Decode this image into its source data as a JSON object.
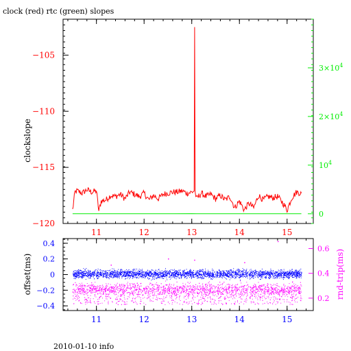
{
  "title": "clock (red) rtc (green) slopes",
  "footer": "2010-01-10 info",
  "colors": {
    "red": "#ff0000",
    "green": "#00ee00",
    "blue": "#0000ff",
    "magenta": "#ff00ff",
    "axis": "#000000"
  },
  "chart_data": [
    {
      "type": "line",
      "title": "clock (red) rtc (green) slopes",
      "xlabel": "",
      "ylabel": "clockslope",
      "xlim": [
        10.3,
        15.55
      ],
      "ylim": [
        -120,
        -101.8
      ],
      "y2lim": [
        -2000,
        40000
      ],
      "x_ticks": [
        11,
        12,
        13,
        14,
        15
      ],
      "y_ticks": [
        -105,
        -110,
        -115,
        -120
      ],
      "y2_tick_values": [
        0,
        10000,
        20000,
        30000
      ],
      "y2_tick_labels": [
        {
          "base": "0",
          "exp": ""
        },
        {
          "base": "10",
          "exp": "4"
        },
        {
          "base": "2×10",
          "exp": "4"
        },
        {
          "base": "3×10",
          "exp": "4"
        }
      ],
      "grid": false,
      "series": [
        {
          "name": "clock",
          "color": "red",
          "axis": "left",
          "x": [
            10.5,
            10.55,
            10.6,
            10.7,
            10.8,
            10.9,
            11.0,
            11.05,
            11.1,
            11.2,
            11.3,
            11.4,
            11.5,
            11.6,
            11.7,
            11.8,
            11.9,
            12.0,
            12.1,
            12.2,
            12.3,
            12.4,
            12.5,
            12.6,
            12.7,
            12.8,
            12.9,
            13.0,
            13.05,
            13.06,
            13.07,
            13.1,
            13.2,
            13.3,
            13.4,
            13.5,
            13.6,
            13.7,
            13.8,
            13.9,
            14.0,
            14.1,
            14.2,
            14.3,
            14.4,
            14.5,
            14.6,
            14.7,
            14.8,
            14.9,
            15.0,
            15.1,
            15.2,
            15.3
          ],
          "y": [
            -118.8,
            -117.2,
            -117.1,
            -117.3,
            -117.0,
            -117.2,
            -117.1,
            -118.9,
            -118.0,
            -117.9,
            -117.5,
            -117.6,
            -117.4,
            -117.8,
            -117.2,
            -117.4,
            -117.6,
            -117.3,
            -117.9,
            -117.5,
            -117.8,
            -117.4,
            -117.3,
            -117.2,
            -117.2,
            -117.1,
            -117.3,
            -117.2,
            -117.1,
            -102.5,
            -117.2,
            -117.8,
            -117.3,
            -117.6,
            -117.4,
            -117.8,
            -117.5,
            -117.9,
            -117.6,
            -118.6,
            -118.0,
            -118.8,
            -118.2,
            -118.6,
            -117.5,
            -117.9,
            -117.6,
            -117.7,
            -117.6,
            -118.1,
            -118.8,
            -117.7,
            -117.2,
            -117.3
          ]
        },
        {
          "name": "rtc",
          "color": "green",
          "axis": "right",
          "x": [
            10.5,
            11.0,
            11.5,
            12.0,
            12.5,
            13.0,
            13.1,
            13.5,
            14.0,
            14.5,
            15.0,
            15.3
          ],
          "y": [
            0,
            20,
            0,
            10,
            0,
            30,
            0,
            10,
            0,
            20,
            0,
            10
          ]
        }
      ]
    },
    {
      "type": "scatter",
      "xlabel": "",
      "ylabel": "offset(ms)",
      "y2label": "rnd-trip(ms)",
      "xlim": [
        10.3,
        15.55
      ],
      "ylim": [
        -0.46,
        0.46
      ],
      "y2lim": [
        0.1,
        0.68
      ],
      "x_ticks": [
        11,
        12,
        13,
        14,
        15
      ],
      "y_ticks": [
        0.4,
        0.2,
        0,
        -0.2,
        -0.4
      ],
      "y_tick_labels": [
        "0.4",
        "0.2",
        "0",
        "−0.2",
        "−0.4"
      ],
      "y2_ticks": [
        0.6,
        0.4,
        0.2
      ],
      "grid": false,
      "series": [
        {
          "name": "offset",
          "color": "blue",
          "axis": "left",
          "x_range": [
            10.5,
            15.3
          ],
          "band_center": 0.01,
          "band_spread": 0.05
        },
        {
          "name": "rnd-trip",
          "color": "magenta",
          "axis": "right",
          "x_range": [
            10.5,
            15.3
          ],
          "band_center": 0.27,
          "band_spread": 0.05,
          "outliers": [
            [
              12.5,
              0.52
            ],
            [
              13.05,
              0.51
            ],
            [
              14.1,
              0.49
            ],
            [
              14.8,
              0.66
            ],
            [
              11.3,
              0.47
            ]
          ]
        }
      ]
    }
  ]
}
